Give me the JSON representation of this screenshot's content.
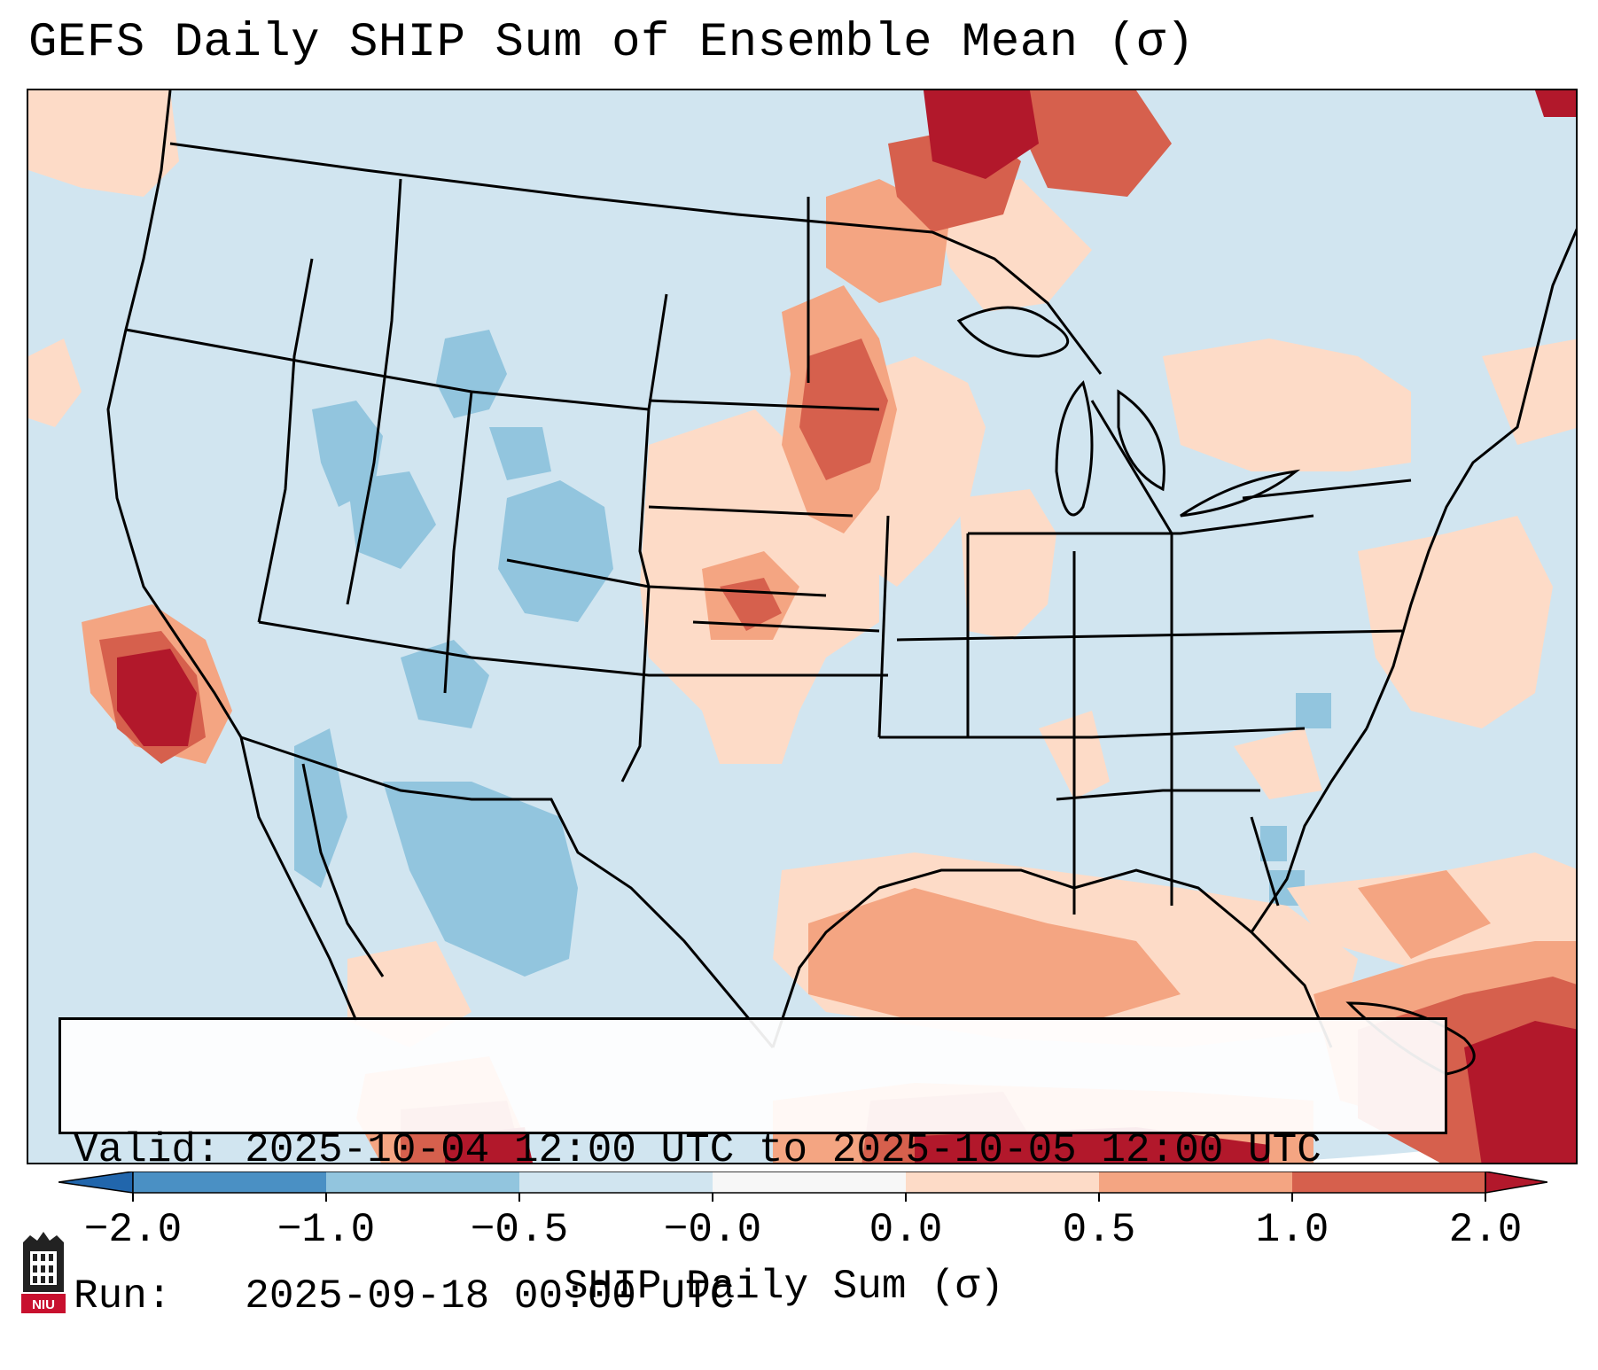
{
  "title": "GEFS Daily SHIP Sum of Ensemble Mean (σ)",
  "info": {
    "valid_line": "Valid: 2025-10-04 12:00 UTC to 2025-10-05 12:00 UTC",
    "run_line": "Run:   2025-09-18 00:00 UTC"
  },
  "colorbar": {
    "label": "SHIP Daily Sum (σ)",
    "ticks": [
      "−2.0",
      "−1.0",
      "−0.5",
      "−0.0",
      "0.0",
      "0.5",
      "1.0",
      "2.0"
    ],
    "colors": [
      "#4a90c4",
      "#92c5de",
      "#d1e5f0",
      "#f7f7f7",
      "#fddbc7",
      "#f4a582",
      "#d6604d",
      "#b2182b"
    ],
    "extend": "both"
  },
  "logo": {
    "name": "niu-logo",
    "text": "NIU"
  },
  "map": {
    "region": "Continental United States",
    "ocean_color": "#d1e5f0",
    "land_color": "#d1e5f0"
  }
}
